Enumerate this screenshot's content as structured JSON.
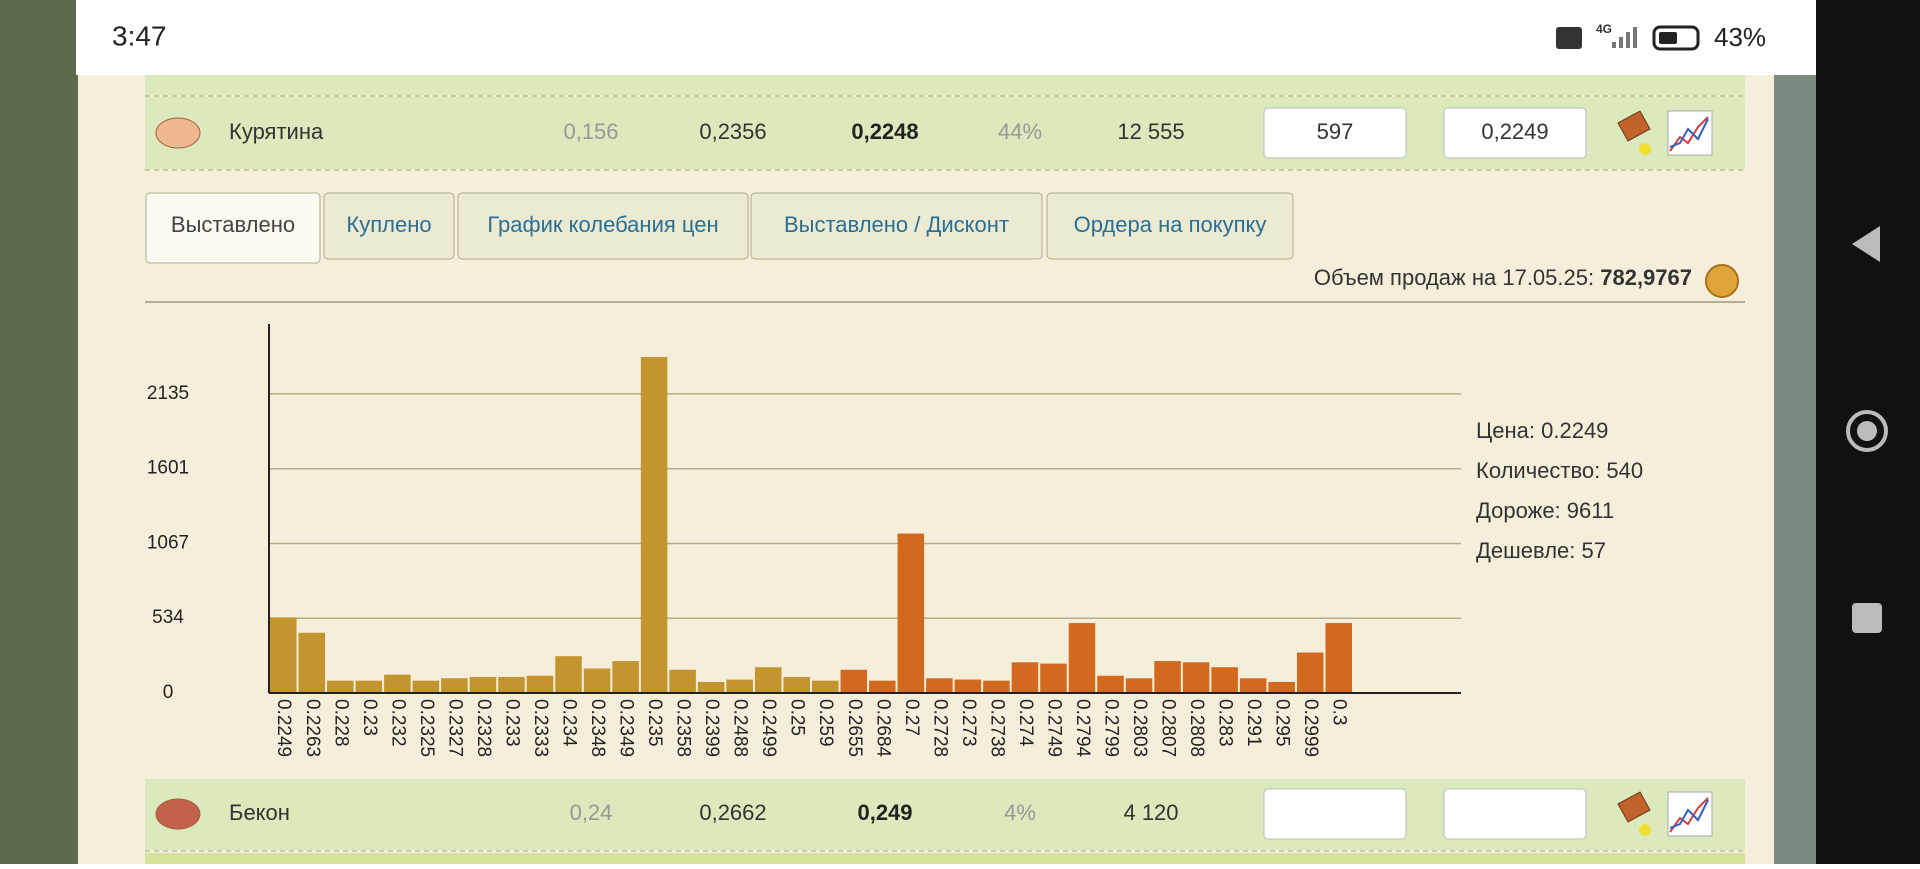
{
  "status_bar": {
    "time": "3:47",
    "network": "4G",
    "battery": "43%"
  },
  "rows": [
    {
      "name": "Курятина",
      "values": [
        "0,156",
        "0,2356",
        "0,2248",
        "44%",
        "12 555"
      ],
      "inputs": [
        "597",
        "0,2249"
      ]
    },
    {
      "name": "Бекон",
      "values": [
        "0,24",
        "0,2662",
        "0,249",
        "4%",
        "4 120"
      ]
    }
  ],
  "tabs": [
    "Выставлено",
    "Куплено",
    "График колебания цен",
    "Выставлено / Дисконт",
    "Ордера на покупку"
  ],
  "sales": {
    "label": "Объем продаж на 17.05.25:",
    "value": "782,9767"
  },
  "chart_data": {
    "type": "bar",
    "categories": [
      "0.2249",
      "0.2263",
      "0.228",
      "0.23",
      "0.232",
      "0.2325",
      "0.2327",
      "0.2328",
      "0.233",
      "0.2333",
      "0.234",
      "0.2348",
      "0.2349",
      "0.235",
      "0.2358",
      "0.2399",
      "0.2488",
      "0.2499",
      "0.25",
      "0.259",
      "0.2655",
      "0.2684",
      "0.27",
      "0.2728",
      "0.273",
      "0.2738",
      "0.274",
      "0.2749",
      "0.2794",
      "0.2799",
      "0.2803",
      "0.2807",
      "0.2808",
      "0.283",
      "0.291",
      "0.295",
      "0.2999",
      "0.3"
    ],
    "values": [
      540,
      430,
      88,
      88,
      131,
      88,
      105,
      114,
      114,
      123,
      263,
      175,
      228,
      2398,
      166,
      79,
      96,
      184,
      114,
      88,
      166,
      88,
      1138,
      105,
      96,
      88,
      219,
      210,
      499,
      123,
      105,
      228,
      219,
      184,
      105,
      79,
      289,
      499
    ],
    "colors": [
      "#c4952f",
      "#c4952f",
      "#c4952f",
      "#c4952f",
      "#c4952f",
      "#c4952f",
      "#c4952f",
      "#c4952f",
      "#c4952f",
      "#c4952f",
      "#c4952f",
      "#c4952f",
      "#c4952f",
      "#c4952f",
      "#c4952f",
      "#c4952f",
      "#c4952f",
      "#c4952f",
      "#c4952f",
      "#c4952f",
      "#d2691e",
      "#d2691e",
      "#d2691e",
      "#d2691e",
      "#d2691e",
      "#d2691e",
      "#d2691e",
      "#d2691e",
      "#d2691e",
      "#d2691e",
      "#d2691e",
      "#d2691e",
      "#d2691e",
      "#d2691e",
      "#d2691e",
      "#d2691e",
      "#d2691e",
      "#d2691e"
    ],
    "ylim": [
      0,
      2634
    ],
    "yticks": [
      0,
      534,
      1067,
      1601,
      2135
    ],
    "grid": true
  },
  "tooltip": [
    "Цена: 0.2249",
    "Количество: 540",
    "Дороже: 9611",
    "Дешевле: 57"
  ]
}
